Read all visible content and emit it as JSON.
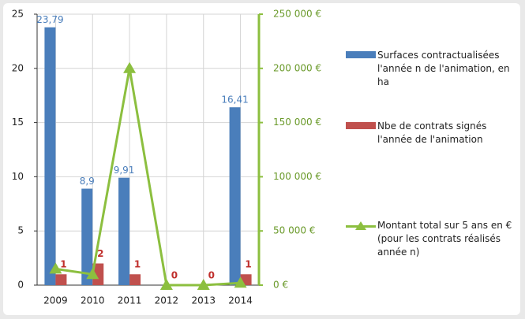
{
  "chart_data": {
    "type": "bar-line",
    "categories": [
      "2009",
      "2010",
      "2011",
      "2012",
      "2013",
      "2014"
    ],
    "series": [
      {
        "name": "Surfaces contractualisées l'année n de l'animation, en ha",
        "type": "bar",
        "color": "#4a7ebb",
        "values": [
          23.79,
          8.9,
          9.91,
          null,
          null,
          16.41
        ],
        "value_labels": [
          "23,79",
          "8,9",
          "9,91",
          null,
          null,
          "16,41"
        ]
      },
      {
        "name": "Nbe de contrats signés l'année de l'animation",
        "type": "bar",
        "color": "#c0504d",
        "values": [
          1,
          2,
          1,
          0,
          0,
          1
        ]
      },
      {
        "name": "Montant total sur 5 ans en € (pour les contrats réalisés année n)",
        "type": "line",
        "axis": "y2",
        "color": "#8cbf3f",
        "values": [
          15000,
          10000,
          200000,
          0,
          0,
          2000
        ]
      }
    ],
    "ylim": [
      0,
      25
    ],
    "yticks": [
      0,
      5,
      10,
      15,
      20,
      25
    ],
    "y2lim": [
      0,
      250000
    ],
    "y2ticks": [
      {
        "value": 0,
        "label": "0 €"
      },
      {
        "value": 50000,
        "label": "50 000 €"
      },
      {
        "value": 100000,
        "label": "100 000 €"
      },
      {
        "value": 150000,
        "label": "150 000 €"
      },
      {
        "value": 200000,
        "label": "200 000 €"
      },
      {
        "value": 250000,
        "label": "250 000 €"
      }
    ],
    "grid": true,
    "legend": "right"
  }
}
